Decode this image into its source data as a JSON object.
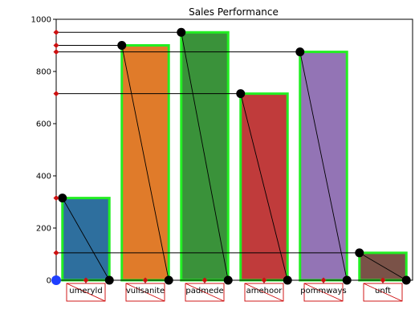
{
  "chart_data": {
    "type": "bar",
    "title": "Sales Performance",
    "xlabel": "",
    "ylabel": "",
    "categories": [
      "umeryld",
      "vullsanite",
      "padmede",
      "amehoor",
      "pommways",
      "unft"
    ],
    "values": [
      315,
      900,
      950,
      715,
      875,
      105
    ],
    "ylim": [
      0,
      1000
    ],
    "yticks": [
      0,
      200,
      400,
      600,
      800,
      1000
    ],
    "bar_colors": [
      "#2e6f9e",
      "#e07b2a",
      "#3a923a",
      "#c03b3b",
      "#9374b5",
      "#7a5248"
    ],
    "bar_edge_color": "#22ee22",
    "marker_colors": {
      "point": "#000000",
      "diamond": "#cc1111",
      "origin": "#1f3fff",
      "label_box": "#cc0000"
    }
  }
}
